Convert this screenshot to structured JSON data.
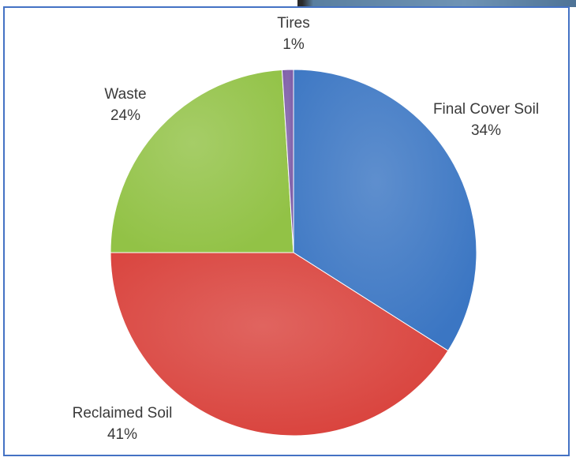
{
  "chart_data": {
    "type": "pie",
    "title": "",
    "slices": [
      {
        "label": "Final Cover Soil",
        "value": 34,
        "display": "34%",
        "color": "#3b76c3"
      },
      {
        "label": "Reclaimed Soil",
        "value": 41,
        "display": "41%",
        "color": "#d9423c"
      },
      {
        "label": "Waste",
        "value": 24,
        "display": "24%",
        "color": "#92c246"
      },
      {
        "label": "Tires",
        "value": 1,
        "display": "1%",
        "color": "#7b5aa6"
      }
    ],
    "legend": "none"
  }
}
